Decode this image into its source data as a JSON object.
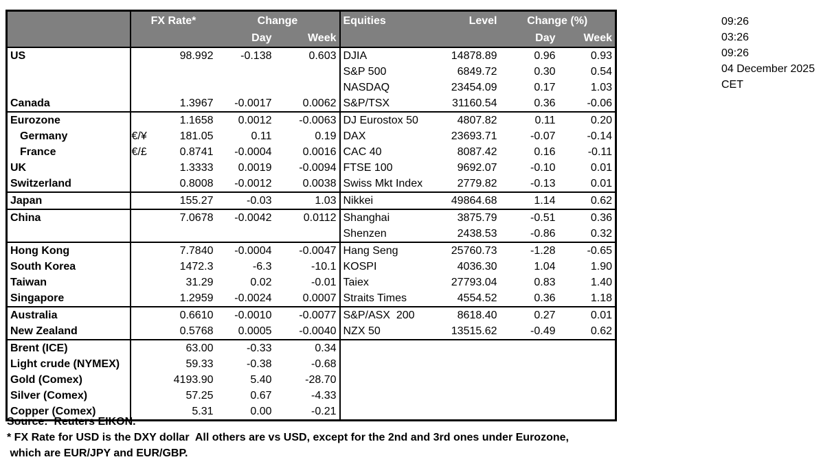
{
  "colors": {
    "header_bg": "#808080",
    "header_text": "#FFFFFF",
    "grid_line": "#000000",
    "background": "#FFFFFF"
  },
  "header": {
    "fx_rate": "FX Rate*",
    "change": "Change",
    "day": "Day",
    "week": "Week",
    "equities": "Equities",
    "level": "Level",
    "change_pct": "Change (%)"
  },
  "table": {
    "rows": [
      {
        "label": "US",
        "sep": true,
        "sym": "",
        "fx": "98.992",
        "fx_day": "-0.138",
        "fx_week": "0.603",
        "eq": "DJIA",
        "level": "14878.89",
        "eq_day": "0.96",
        "eq_week": "0.93"
      },
      {
        "label": "",
        "sym": "",
        "fx": "",
        "fx_day": "",
        "fx_week": "",
        "eq": "S&P 500",
        "level": "6849.72",
        "eq_day": "0.30",
        "eq_week": "0.54"
      },
      {
        "label": "",
        "sym": "",
        "fx": "",
        "fx_day": "",
        "fx_week": "",
        "eq": "NASDAQ",
        "level": "23454.09",
        "eq_day": "0.17",
        "eq_week": "1.03"
      },
      {
        "label": "Canada",
        "sym": "",
        "fx": "1.3967",
        "fx_day": "-0.0017",
        "fx_week": "0.0062",
        "eq": "S&P/TSX",
        "level": "31160.54",
        "eq_day": "0.36",
        "eq_week": "-0.06"
      },
      {
        "label": "Eurozone",
        "sep": true,
        "sym": "",
        "fx": "1.1658",
        "fx_day": "0.0012",
        "fx_week": "-0.0063",
        "eq": "DJ Eurostox 50",
        "level": "4807.82",
        "eq_day": "0.11",
        "eq_week": "0.20"
      },
      {
        "label": "Germany",
        "indent": true,
        "sym": "€/¥",
        "fx": "181.05",
        "fx_day": "0.11",
        "fx_week": "0.19",
        "eq": "DAX",
        "level": "23693.71",
        "eq_day": "-0.07",
        "eq_week": "-0.14"
      },
      {
        "label": "France",
        "indent": true,
        "sym": "€/£",
        "fx": "0.8741",
        "fx_day": "-0.0004",
        "fx_week": "0.0016",
        "eq": "CAC 40",
        "level": "8087.42",
        "eq_day": "0.16",
        "eq_week": "-0.11"
      },
      {
        "label": "UK",
        "sym": "",
        "fx": "1.3333",
        "fx_day": "0.0019",
        "fx_week": "-0.0094",
        "eq": "FTSE 100",
        "level": "9692.07",
        "eq_day": "-0.10",
        "eq_week": "0.01"
      },
      {
        "label": "Switzerland",
        "sym": "",
        "fx": "0.8008",
        "fx_day": "-0.0012",
        "fx_week": "0.0038",
        "eq": "Swiss Mkt Index",
        "level": "2779.82",
        "eq_day": "-0.13",
        "eq_week": "0.01"
      },
      {
        "label": "Japan",
        "sep": true,
        "sym": "",
        "fx": "155.27",
        "fx_day": "-0.03",
        "fx_week": "1.03",
        "eq": "Nikkei",
        "level": "49864.68",
        "eq_day": "1.14",
        "eq_week": "0.62"
      },
      {
        "label": "China",
        "sep": true,
        "sym": "",
        "fx": "7.0678",
        "fx_day": "-0.0042",
        "fx_week": "0.0112",
        "eq": "Shanghai",
        "level": "3875.79",
        "eq_day": "-0.51",
        "eq_week": "0.36"
      },
      {
        "label": "",
        "sym": "",
        "fx": "",
        "fx_day": "",
        "fx_week": "",
        "eq": "Shenzen",
        "level": "2438.53",
        "eq_day": "-0.86",
        "eq_week": "0.32"
      },
      {
        "label": "Hong Kong",
        "sep": true,
        "sym": "",
        "fx": "7.7840",
        "fx_day": "-0.0004",
        "fx_week": "-0.0047",
        "eq": "Hang Seng",
        "level": "25760.73",
        "eq_day": "-1.28",
        "eq_week": "-0.65"
      },
      {
        "label": "South Korea",
        "sym": "",
        "fx": "1472.3",
        "fx_day": "-6.3",
        "fx_week": "-10.1",
        "eq": "KOSPI",
        "level": "4036.30",
        "eq_day": "1.04",
        "eq_week": "1.90"
      },
      {
        "label": "Taiwan",
        "sym": "",
        "fx": "31.29",
        "fx_day": "0.02",
        "fx_week": "-0.01",
        "eq": "Taiex",
        "level": "27793.04",
        "eq_day": "0.83",
        "eq_week": "1.40"
      },
      {
        "label": "Singapore",
        "sym": "",
        "fx": "1.2959",
        "fx_day": "-0.0024",
        "fx_week": "0.0007",
        "eq": "Straits Times",
        "level": "4554.52",
        "eq_day": "0.36",
        "eq_week": "1.18"
      },
      {
        "label": "Australia",
        "sep": true,
        "sym": "",
        "fx": "0.6610",
        "fx_day": "-0.0010",
        "fx_week": "-0.0077",
        "eq": "S&P/ASX  200",
        "level": "8618.40",
        "eq_day": "0.27",
        "eq_week": "0.01"
      },
      {
        "label": "New Zealand",
        "sym": "",
        "fx": "0.5768",
        "fx_day": "0.0005",
        "fx_week": "-0.0040",
        "eq": "NZX 50",
        "level": "13515.62",
        "eq_day": "-0.49",
        "eq_week": "0.62"
      },
      {
        "label": "Brent (ICE)",
        "sep": true,
        "sym": "",
        "fx": "63.00",
        "fx_day": "-0.33",
        "fx_week": "0.34",
        "eq": "",
        "level": "",
        "eq_day": "",
        "eq_week": ""
      },
      {
        "label": "Light crude (NYMEX)",
        "sym": "",
        "fx": "59.33",
        "fx_day": "-0.38",
        "fx_week": "-0.68",
        "eq": "",
        "level": "",
        "eq_day": "",
        "eq_week": ""
      },
      {
        "label": "Gold (Comex)",
        "sym": "",
        "fx": "4193.90",
        "fx_day": "5.40",
        "fx_week": "-28.70",
        "eq": "",
        "level": "",
        "eq_day": "",
        "eq_week": ""
      },
      {
        "label": "Silver (Comex)",
        "sym": "",
        "fx": "57.25",
        "fx_day": "0.67",
        "fx_week": "-4.33",
        "eq": "",
        "level": "",
        "eq_day": "",
        "eq_week": ""
      },
      {
        "label": "Copper (Comex)",
        "sym": "",
        "fx": "5.31",
        "fx_day": "0.00",
        "fx_week": "-0.21",
        "eq": "",
        "level": "",
        "eq_day": "",
        "eq_week": ""
      }
    ]
  },
  "info": {
    "lines": [
      "09:26",
      "03:26",
      "09:26",
      "04 December 2025",
      "CET"
    ]
  },
  "footnotes": [
    "Source:  Reuters EIKON.",
    "* FX Rate for USD is the DXY dollar  All others are vs USD, except for the 2nd and 3rd ones under Eurozone,",
    " which are EUR/JPY and EUR/GBP."
  ]
}
